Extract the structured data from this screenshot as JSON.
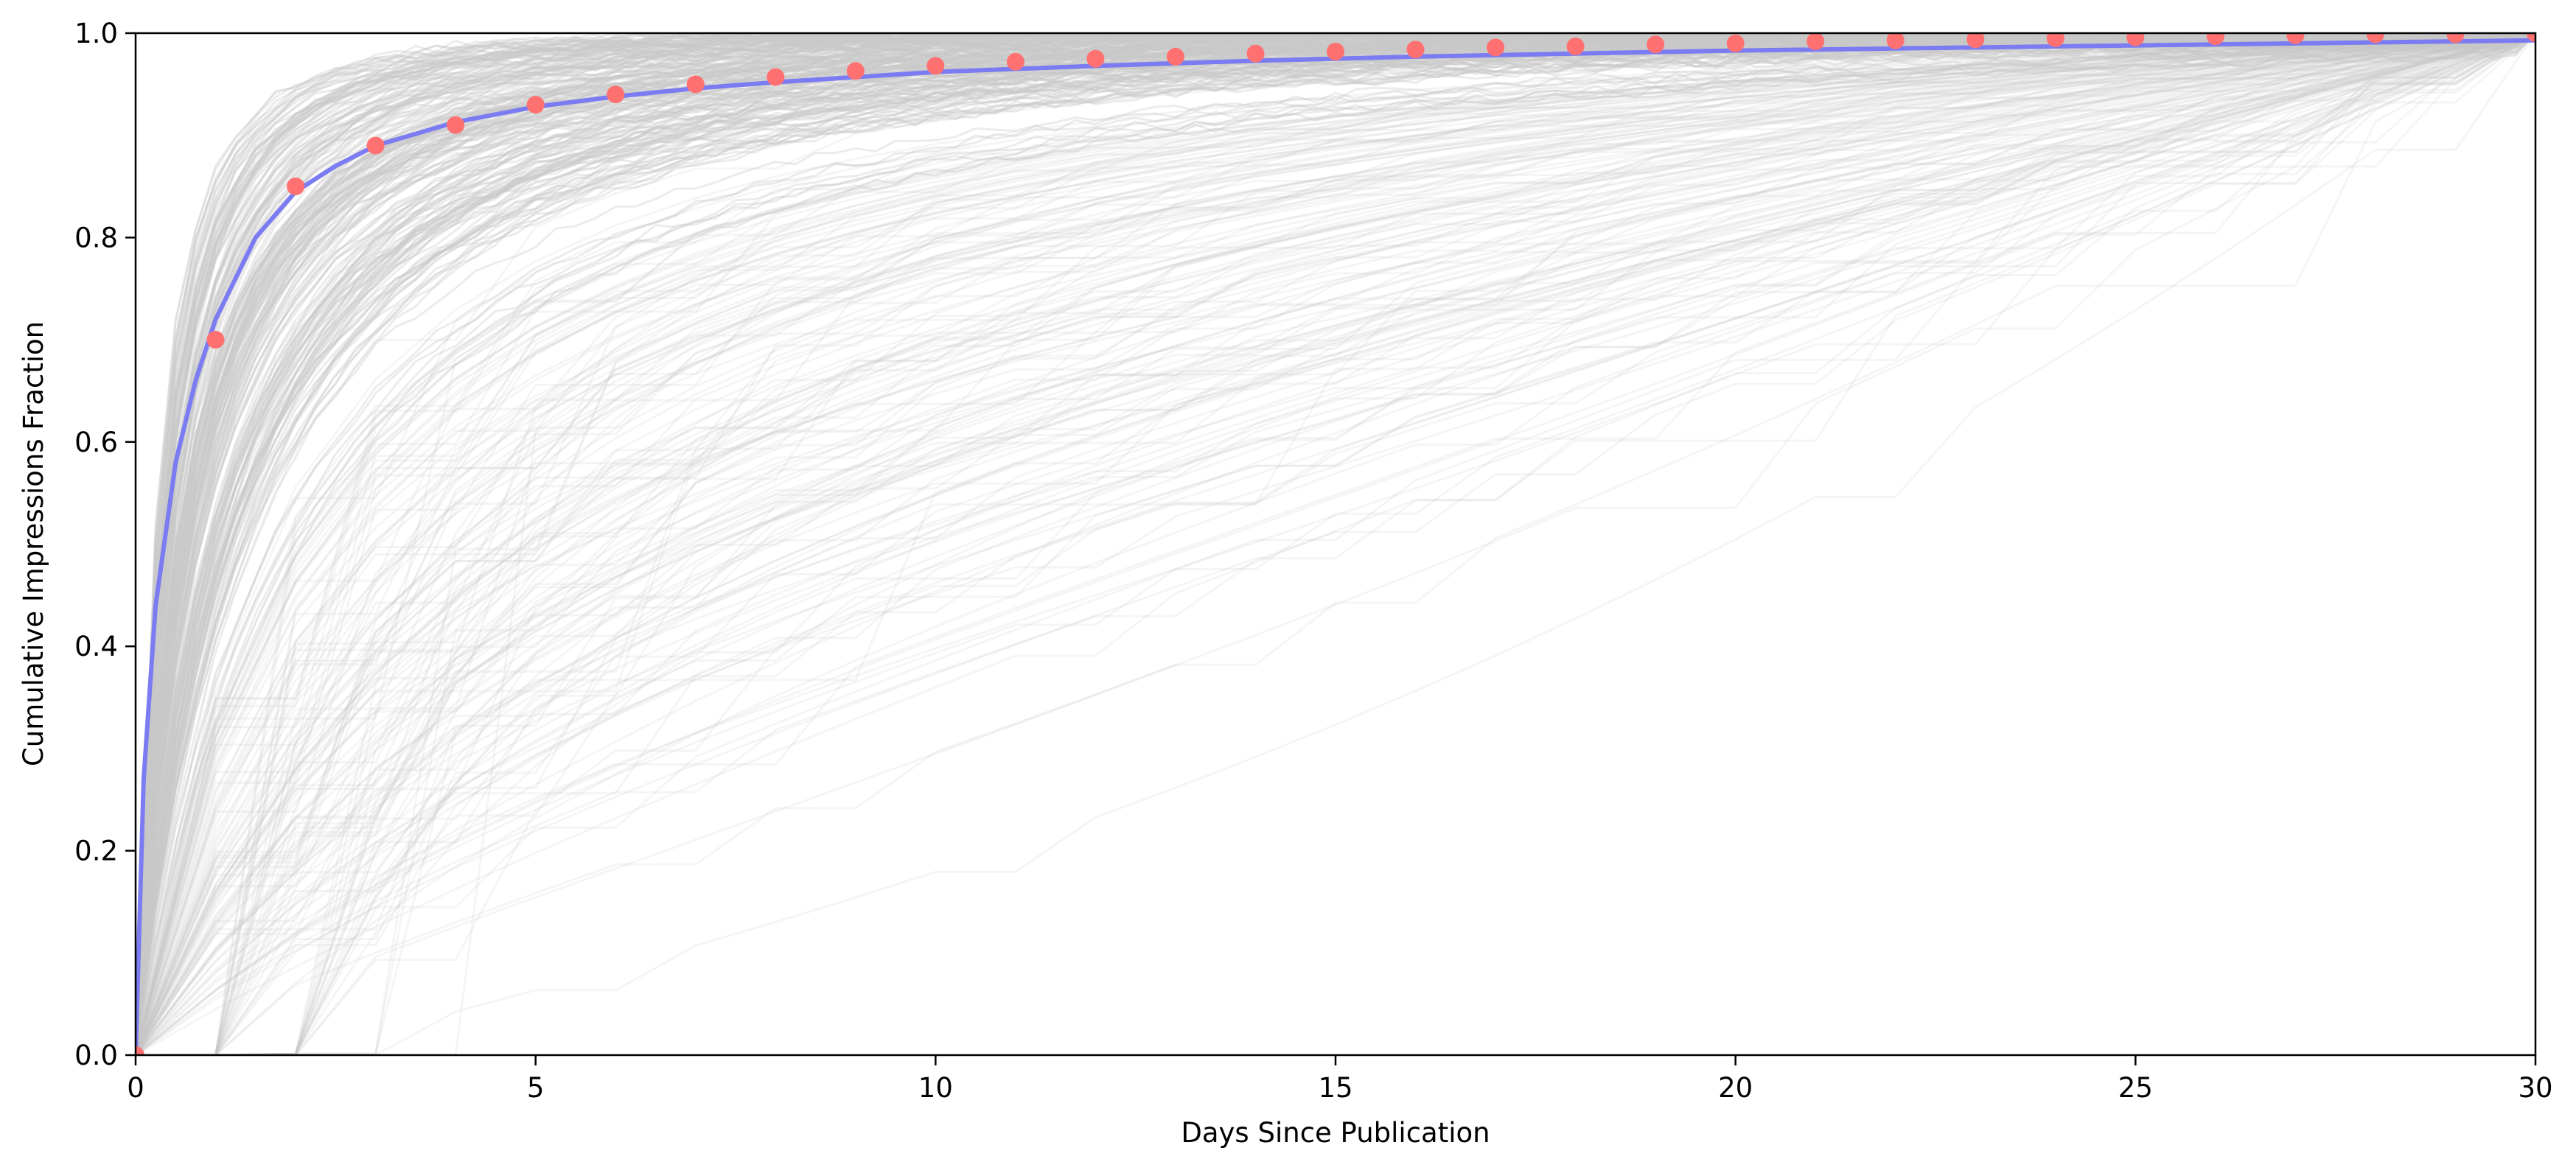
{
  "chart_data": {
    "type": "line",
    "title": "",
    "xlabel": "Days Since Publication",
    "ylabel": "Cumulative Impressions Fraction",
    "xlim": [
      0,
      30
    ],
    "ylim": [
      0.0,
      1.0
    ],
    "x_ticks": [
      "0",
      "5",
      "10",
      "15",
      "20",
      "25",
      "30"
    ],
    "y_ticks": [
      "0.0",
      "0.2",
      "0.4",
      "0.6",
      "0.8",
      "1.0"
    ],
    "grid": false,
    "legend": "none",
    "series": [
      {
        "role": "mean-points",
        "type": "scatter",
        "color": "#ff7070",
        "x": [
          0,
          1,
          2,
          3,
          4,
          5,
          6,
          7,
          8,
          9,
          10,
          11,
          12,
          13,
          14,
          15,
          16,
          17,
          18,
          19,
          20,
          21,
          22,
          23,
          24,
          25,
          26,
          27,
          28,
          29,
          30
        ],
        "y": [
          0.0,
          0.7,
          0.85,
          0.89,
          0.91,
          0.93,
          0.94,
          0.95,
          0.957,
          0.963,
          0.968,
          0.972,
          0.975,
          0.977,
          0.98,
          0.982,
          0.984,
          0.986,
          0.987,
          0.989,
          0.99,
          0.992,
          0.993,
          0.994,
          0.995,
          0.996,
          0.997,
          0.998,
          0.999,
          0.999,
          1.0
        ]
      },
      {
        "role": "fitted-curve",
        "type": "line",
        "color": "#7b7bf2",
        "x": [
          0,
          0.1,
          0.25,
          0.5,
          0.75,
          1,
          1.5,
          2,
          2.5,
          3,
          4,
          5,
          6,
          7,
          8,
          9,
          10,
          12,
          14,
          16,
          18,
          20,
          22,
          24,
          26,
          28,
          30
        ],
        "y": [
          0.0,
          0.27,
          0.44,
          0.58,
          0.66,
          0.72,
          0.8,
          0.845,
          0.87,
          0.89,
          0.913,
          0.928,
          0.938,
          0.946,
          0.952,
          0.957,
          0.962,
          0.968,
          0.973,
          0.977,
          0.98,
          0.983,
          0.985,
          0.987,
          0.989,
          0.991,
          0.993
        ]
      },
      {
        "role": "individual-trajectories",
        "type": "line",
        "color": "#c8c8c8",
        "description_count": 40
      }
    ]
  }
}
